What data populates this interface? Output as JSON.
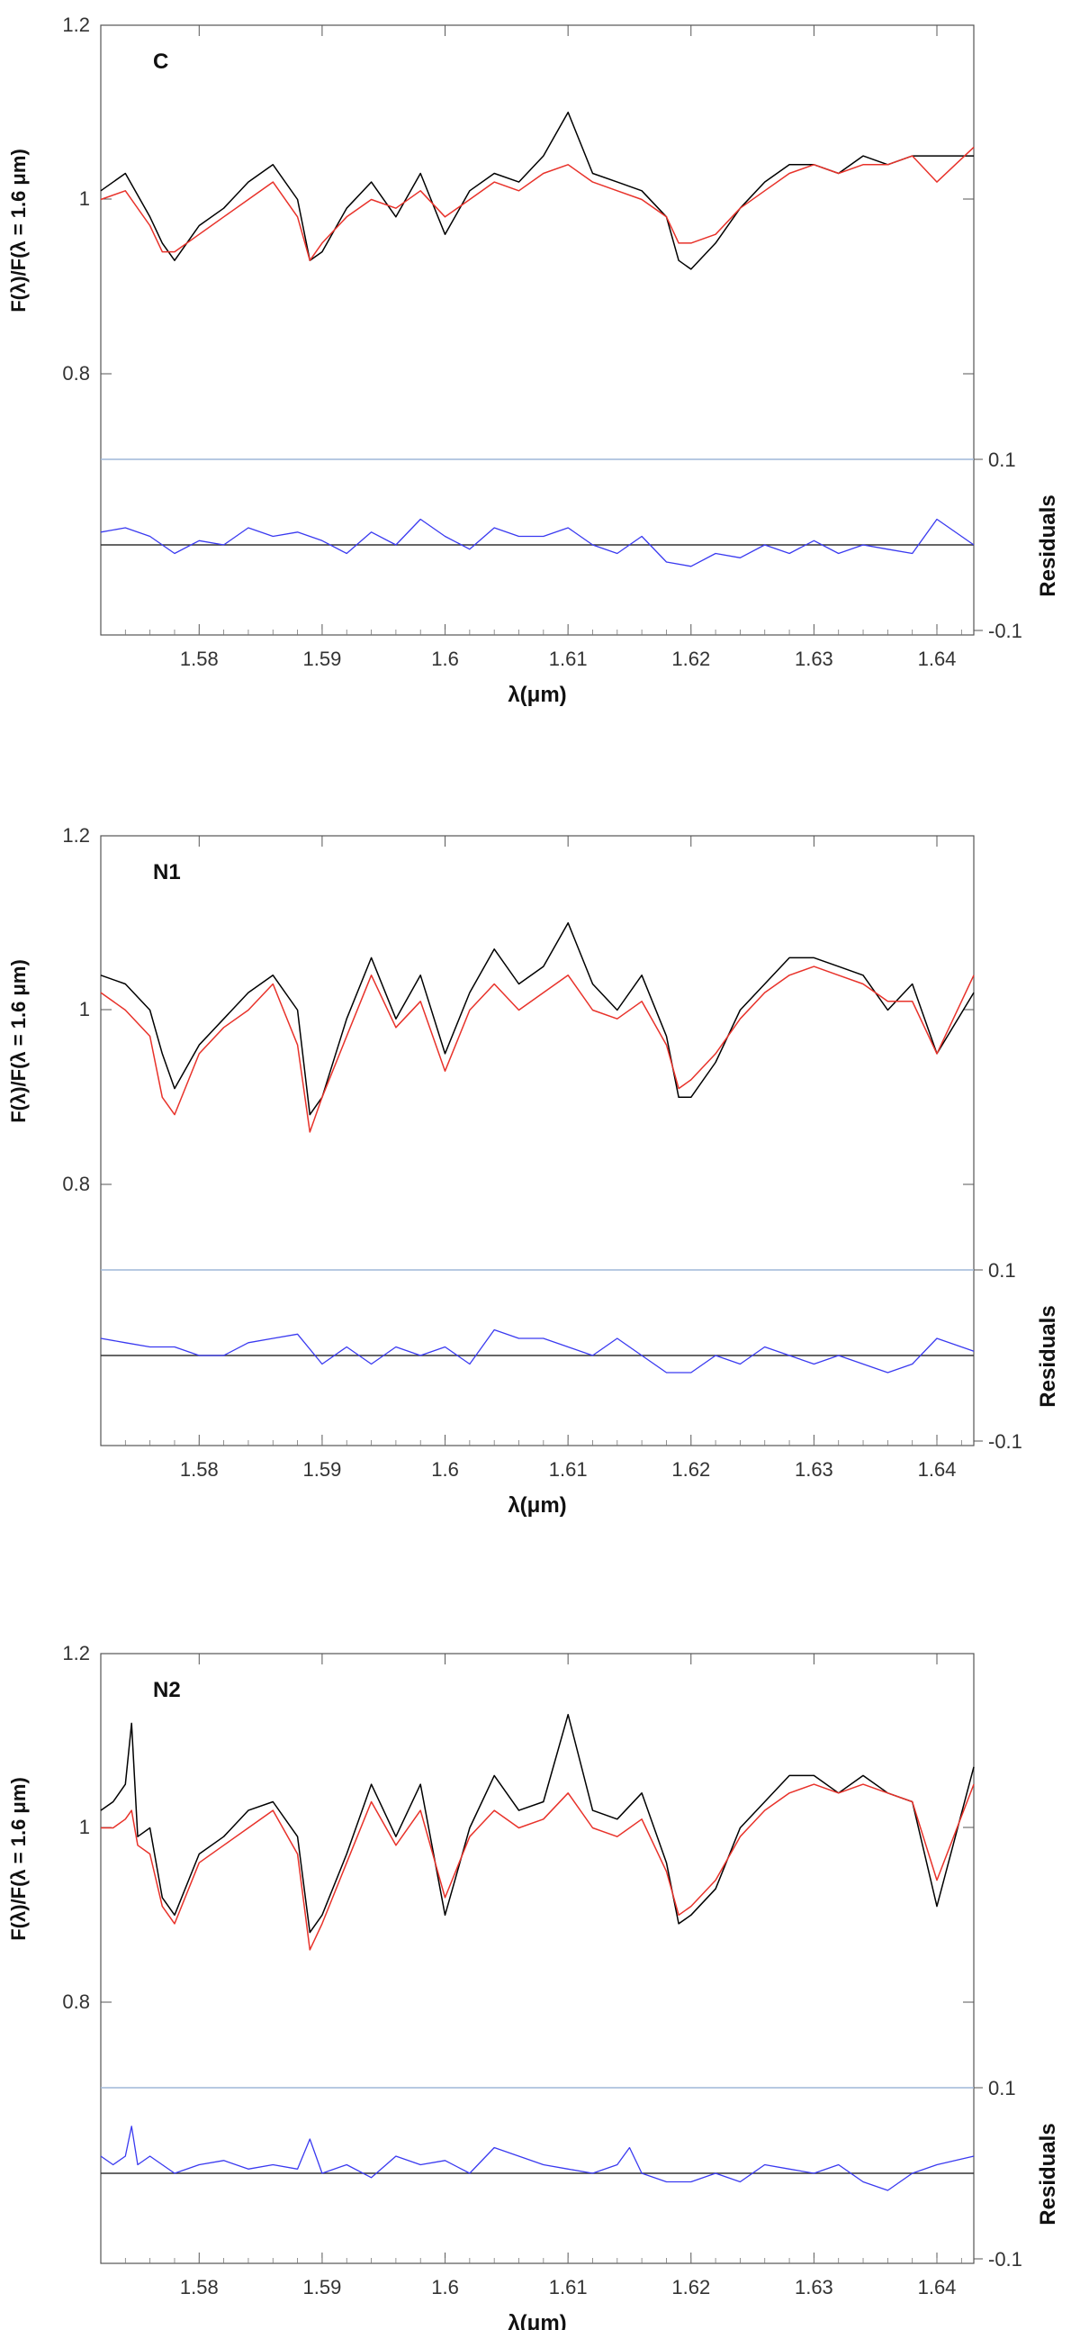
{
  "chart_data": [
    {
      "type": "line",
      "panel_label": "C",
      "ylabel": "F(λ)/F(λ = 1.6 μm)",
      "xlabel": "λ(μm)",
      "right_label": "Residuals",
      "xlim": [
        1.572,
        1.643
      ],
      "ylim": [
        0.7,
        1.2
      ],
      "xticks": [
        "1.58",
        "1.59",
        "1.6",
        "1.61",
        "1.62",
        "1.63",
        "1.64"
      ],
      "yticks": [
        "1.2",
        "1",
        "0.8"
      ],
      "residual_ticks": [
        "0.1",
        "-0.1"
      ],
      "series": [
        {
          "color": "#000000",
          "x": [
            1.572,
            1.574,
            1.576,
            1.577,
            1.578,
            1.58,
            1.582,
            1.584,
            1.586,
            1.588,
            1.589,
            1.59,
            1.592,
            1.594,
            1.596,
            1.598,
            1.6,
            1.602,
            1.604,
            1.606,
            1.608,
            1.61,
            1.612,
            1.614,
            1.616,
            1.618,
            1.619,
            1.62,
            1.622,
            1.624,
            1.626,
            1.628,
            1.63,
            1.632,
            1.634,
            1.636,
            1.638,
            1.64,
            1.643
          ],
          "y": [
            1.01,
            1.03,
            0.98,
            0.95,
            0.93,
            0.97,
            0.99,
            1.02,
            1.04,
            1.0,
            0.93,
            0.94,
            0.99,
            1.02,
            0.98,
            1.03,
            0.96,
            1.01,
            1.03,
            1.02,
            1.05,
            1.1,
            1.03,
            1.02,
            1.01,
            0.98,
            0.93,
            0.92,
            0.95,
            0.99,
            1.02,
            1.04,
            1.04,
            1.03,
            1.05,
            1.04,
            1.05,
            1.05,
            1.05
          ]
        },
        {
          "color": "#e8322a",
          "x": [
            1.572,
            1.574,
            1.576,
            1.577,
            1.578,
            1.58,
            1.582,
            1.584,
            1.586,
            1.588,
            1.589,
            1.59,
            1.592,
            1.594,
            1.596,
            1.598,
            1.6,
            1.602,
            1.604,
            1.606,
            1.608,
            1.61,
            1.612,
            1.614,
            1.616,
            1.618,
            1.619,
            1.62,
            1.622,
            1.624,
            1.626,
            1.628,
            1.63,
            1.632,
            1.634,
            1.636,
            1.638,
            1.64,
            1.643
          ],
          "y": [
            1.0,
            1.01,
            0.97,
            0.94,
            0.94,
            0.96,
            0.98,
            1.0,
            1.02,
            0.98,
            0.93,
            0.95,
            0.98,
            1.0,
            0.99,
            1.01,
            0.98,
            1.0,
            1.02,
            1.01,
            1.03,
            1.04,
            1.02,
            1.01,
            1.0,
            0.98,
            0.95,
            0.95,
            0.96,
            0.99,
            1.01,
            1.03,
            1.04,
            1.03,
            1.04,
            1.04,
            1.05,
            1.02,
            1.06
          ]
        },
        {
          "color": "#3a3af0",
          "x": [
            1.572,
            1.574,
            1.576,
            1.578,
            1.58,
            1.582,
            1.584,
            1.586,
            1.588,
            1.59,
            1.592,
            1.594,
            1.596,
            1.598,
            1.6,
            1.602,
            1.604,
            1.606,
            1.608,
            1.61,
            1.612,
            1.614,
            1.616,
            1.618,
            1.62,
            1.622,
            1.624,
            1.626,
            1.628,
            1.63,
            1.632,
            1.634,
            1.636,
            1.638,
            1.64,
            1.643
          ],
          "y": [
            0.015,
            0.02,
            0.01,
            -0.01,
            0.005,
            0.0,
            0.02,
            0.01,
            0.015,
            0.005,
            -0.01,
            0.015,
            0.0,
            0.03,
            0.01,
            -0.005,
            0.02,
            0.01,
            0.01,
            0.02,
            0.0,
            -0.01,
            0.01,
            -0.02,
            -0.025,
            -0.01,
            -0.015,
            0.0,
            -0.01,
            0.005,
            -0.01,
            0.0,
            -0.005,
            -0.01,
            0.03,
            0.0
          ]
        }
      ]
    },
    {
      "type": "line",
      "panel_label": "N1",
      "ylabel": "F(λ)/F(λ = 1.6 μm)",
      "xlabel": "λ(μm)",
      "right_label": "Residuals",
      "xlim": [
        1.572,
        1.643
      ],
      "ylim": [
        0.7,
        1.2
      ],
      "xticks": [
        "1.58",
        "1.59",
        "1.6",
        "1.61",
        "1.62",
        "1.63",
        "1.64"
      ],
      "yticks": [
        "1.2",
        "1",
        "0.8"
      ],
      "residual_ticks": [
        "0.1",
        "-0.1"
      ],
      "series": [
        {
          "color": "#000000",
          "x": [
            1.572,
            1.574,
            1.576,
            1.577,
            1.578,
            1.58,
            1.582,
            1.584,
            1.586,
            1.588,
            1.589,
            1.59,
            1.592,
            1.594,
            1.596,
            1.598,
            1.6,
            1.602,
            1.604,
            1.606,
            1.608,
            1.61,
            1.612,
            1.614,
            1.616,
            1.618,
            1.619,
            1.62,
            1.622,
            1.624,
            1.626,
            1.628,
            1.63,
            1.632,
            1.634,
            1.636,
            1.638,
            1.64,
            1.643
          ],
          "y": [
            1.04,
            1.03,
            1.0,
            0.95,
            0.91,
            0.96,
            0.99,
            1.02,
            1.04,
            1.0,
            0.88,
            0.9,
            0.99,
            1.06,
            0.99,
            1.04,
            0.95,
            1.02,
            1.07,
            1.03,
            1.05,
            1.1,
            1.03,
            1.0,
            1.04,
            0.97,
            0.9,
            0.9,
            0.94,
            1.0,
            1.03,
            1.06,
            1.06,
            1.05,
            1.04,
            1.0,
            1.03,
            0.95,
            1.02
          ]
        },
        {
          "color": "#e8322a",
          "x": [
            1.572,
            1.574,
            1.576,
            1.577,
            1.578,
            1.58,
            1.582,
            1.584,
            1.586,
            1.588,
            1.589,
            1.59,
            1.592,
            1.594,
            1.596,
            1.598,
            1.6,
            1.602,
            1.604,
            1.606,
            1.608,
            1.61,
            1.612,
            1.614,
            1.616,
            1.618,
            1.619,
            1.62,
            1.622,
            1.624,
            1.626,
            1.628,
            1.63,
            1.632,
            1.634,
            1.636,
            1.638,
            1.64,
            1.643
          ],
          "y": [
            1.02,
            1.0,
            0.97,
            0.9,
            0.88,
            0.95,
            0.98,
            1.0,
            1.03,
            0.96,
            0.86,
            0.9,
            0.97,
            1.04,
            0.98,
            1.01,
            0.93,
            1.0,
            1.03,
            1.0,
            1.02,
            1.04,
            1.0,
            0.99,
            1.01,
            0.96,
            0.91,
            0.92,
            0.95,
            0.99,
            1.02,
            1.04,
            1.05,
            1.04,
            1.03,
            1.01,
            1.01,
            0.95,
            1.04
          ]
        },
        {
          "color": "#3a3af0",
          "x": [
            1.572,
            1.574,
            1.576,
            1.578,
            1.58,
            1.582,
            1.584,
            1.586,
            1.588,
            1.59,
            1.592,
            1.594,
            1.596,
            1.598,
            1.6,
            1.602,
            1.604,
            1.606,
            1.608,
            1.61,
            1.612,
            1.614,
            1.616,
            1.618,
            1.62,
            1.622,
            1.624,
            1.626,
            1.628,
            1.63,
            1.632,
            1.634,
            1.636,
            1.638,
            1.64,
            1.643
          ],
          "y": [
            0.02,
            0.015,
            0.01,
            0.01,
            0.0,
            0.0,
            0.015,
            0.02,
            0.025,
            -0.01,
            0.01,
            -0.01,
            0.01,
            0.0,
            0.01,
            -0.01,
            0.03,
            0.02,
            0.02,
            0.01,
            0.0,
            0.02,
            0.0,
            -0.02,
            -0.02,
            0.0,
            -0.01,
            0.01,
            0.0,
            -0.01,
            0.0,
            -0.01,
            -0.02,
            -0.01,
            0.02,
            0.005
          ]
        }
      ]
    },
    {
      "type": "line",
      "panel_label": "N2",
      "ylabel": "F(λ)/F(λ = 1.6 μm)",
      "xlabel": "λ(μm)",
      "right_label": "Residuals",
      "xlim": [
        1.572,
        1.643
      ],
      "ylim": [
        0.7,
        1.2
      ],
      "xticks": [
        "1.58",
        "1.59",
        "1.6",
        "1.61",
        "1.62",
        "1.63",
        "1.64"
      ],
      "yticks": [
        "1.2",
        "1",
        "0.8"
      ],
      "residual_ticks": [
        "0.1",
        "-0.1"
      ],
      "series": [
        {
          "color": "#000000",
          "x": [
            1.572,
            1.573,
            1.574,
            1.5745,
            1.575,
            1.576,
            1.577,
            1.578,
            1.58,
            1.582,
            1.584,
            1.586,
            1.588,
            1.589,
            1.59,
            1.592,
            1.594,
            1.596,
            1.598,
            1.6,
            1.602,
            1.604,
            1.606,
            1.608,
            1.61,
            1.612,
            1.614,
            1.616,
            1.618,
            1.619,
            1.62,
            1.622,
            1.624,
            1.626,
            1.628,
            1.63,
            1.632,
            1.634,
            1.636,
            1.638,
            1.64,
            1.643
          ],
          "y": [
            1.02,
            1.03,
            1.05,
            1.12,
            0.99,
            1.0,
            0.92,
            0.9,
            0.97,
            0.99,
            1.02,
            1.03,
            0.99,
            0.88,
            0.9,
            0.97,
            1.05,
            0.99,
            1.05,
            0.9,
            1.0,
            1.06,
            1.02,
            1.03,
            1.13,
            1.02,
            1.01,
            1.04,
            0.96,
            0.89,
            0.9,
            0.93,
            1.0,
            1.03,
            1.06,
            1.06,
            1.04,
            1.06,
            1.04,
            1.03,
            0.91,
            1.07
          ]
        },
        {
          "color": "#e8322a",
          "x": [
            1.572,
            1.573,
            1.574,
            1.5745,
            1.575,
            1.576,
            1.577,
            1.578,
            1.58,
            1.582,
            1.584,
            1.586,
            1.588,
            1.589,
            1.59,
            1.592,
            1.594,
            1.596,
            1.598,
            1.6,
            1.602,
            1.604,
            1.606,
            1.608,
            1.61,
            1.612,
            1.614,
            1.616,
            1.618,
            1.619,
            1.62,
            1.622,
            1.624,
            1.626,
            1.628,
            1.63,
            1.632,
            1.634,
            1.636,
            1.638,
            1.64,
            1.643
          ],
          "y": [
            1.0,
            1.0,
            1.01,
            1.02,
            0.98,
            0.97,
            0.91,
            0.89,
            0.96,
            0.98,
            1.0,
            1.02,
            0.97,
            0.86,
            0.89,
            0.96,
            1.03,
            0.98,
            1.02,
            0.92,
            0.99,
            1.02,
            1.0,
            1.01,
            1.04,
            1.0,
            0.99,
            1.01,
            0.95,
            0.9,
            0.91,
            0.94,
            0.99,
            1.02,
            1.04,
            1.05,
            1.04,
            1.05,
            1.04,
            1.03,
            0.94,
            1.05
          ]
        },
        {
          "color": "#3a3af0",
          "x": [
            1.572,
            1.573,
            1.574,
            1.5745,
            1.575,
            1.576,
            1.578,
            1.58,
            1.582,
            1.584,
            1.586,
            1.588,
            1.589,
            1.59,
            1.592,
            1.594,
            1.596,
            1.598,
            1.6,
            1.602,
            1.604,
            1.606,
            1.608,
            1.61,
            1.612,
            1.614,
            1.615,
            1.616,
            1.618,
            1.62,
            1.622,
            1.624,
            1.626,
            1.628,
            1.63,
            1.632,
            1.634,
            1.636,
            1.638,
            1.64,
            1.643
          ],
          "y": [
            0.02,
            0.01,
            0.02,
            0.055,
            0.01,
            0.02,
            0.0,
            0.01,
            0.015,
            0.005,
            0.01,
            0.005,
            0.04,
            0.0,
            0.01,
            -0.005,
            0.02,
            0.01,
            0.015,
            0.0,
            0.03,
            0.02,
            0.01,
            0.005,
            0.0,
            0.01,
            0.03,
            0.0,
            -0.01,
            -0.01,
            0.0,
            -0.01,
            0.01,
            0.005,
            0.0,
            0.01,
            -0.01,
            -0.02,
            0.0,
            0.01,
            0.02
          ]
        }
      ]
    }
  ]
}
